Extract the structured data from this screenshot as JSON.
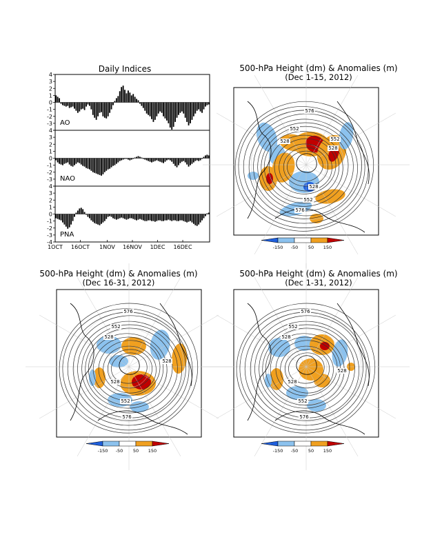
{
  "daily_indices": {
    "title": "Daily Indices",
    "x_ticks": [
      "1OCT",
      "16OCT",
      "1NOV",
      "16NOV",
      "1DEC",
      "16DEC"
    ],
    "y_ticks": [
      "4",
      "3",
      "2",
      "1",
      "0",
      "-1",
      "-2",
      "-3",
      "-4"
    ]
  },
  "maps": [
    {
      "title": "500-hPa Height (dm) & Anomalies (m)",
      "period": "(Dec 1-15, 2012)",
      "labels": [
        "576",
        "552",
        "528",
        "552",
        "528",
        "528",
        "552",
        "576"
      ]
    },
    {
      "title": "500-hPa Height (dm) & Anomalies (m)",
      "period": "(Dec 16-31, 2012)",
      "labels": [
        "576",
        "552",
        "528",
        "528",
        "528",
        "552",
        "576"
      ]
    },
    {
      "title": "500-hPa Height (dm) & Anomalies (m)",
      "period": "(Dec 1-31, 2012)",
      "labels": [
        "576",
        "552",
        "528",
        "528",
        "528",
        "552",
        "576"
      ]
    }
  ],
  "colorbar": {
    "labels": [
      "-150",
      "-50",
      "50",
      "150"
    ],
    "colors": [
      "#1f5fdc",
      "#8cc2ee",
      "#ffffff",
      "#f0a020",
      "#c00000"
    ]
  },
  "chart_data": [
    {
      "type": "bar",
      "title": "AO",
      "x": "daily, 1 Oct 2012 - 31 Dec 2012 (92 days)",
      "ylim": [
        -4,
        4
      ],
      "values": [
        1.0,
        0.8,
        0.6,
        -0.2,
        -0.4,
        -0.5,
        -0.6,
        -0.5,
        -0.8,
        -0.7,
        -0.6,
        -0.9,
        -1.2,
        -1.5,
        -1.3,
        -1.0,
        -0.9,
        -1.1,
        -0.6,
        -0.3,
        -0.5,
        -1.0,
        -1.8,
        -2.2,
        -2.5,
        -2.0,
        -1.5,
        -1.4,
        -2.0,
        -2.2,
        -2.3,
        -2.0,
        -1.5,
        -1.0,
        -0.4,
        0.2,
        0.6,
        0.9,
        1.6,
        2.2,
        2.4,
        1.8,
        1.3,
        1.7,
        1.4,
        1.0,
        1.2,
        0.8,
        0.5,
        0.3,
        -0.2,
        -0.5,
        -0.8,
        -1.2,
        -1.6,
        -1.8,
        -2.0,
        -2.4,
        -2.8,
        -2.5,
        -2.0,
        -1.6,
        -1.3,
        -1.5,
        -2.0,
        -2.3,
        -2.6,
        -3.0,
        -3.6,
        -3.9,
        -3.5,
        -2.8,
        -2.2,
        -1.8,
        -1.5,
        -1.3,
        -1.6,
        -2.2,
        -2.8,
        -3.3,
        -3.0,
        -2.5,
        -2.0,
        -1.6,
        -1.2,
        -1.0,
        -1.3,
        -1.5,
        -1.0,
        -0.6,
        -0.4,
        -0.3
      ]
    },
    {
      "type": "bar",
      "title": "NAO",
      "x": "daily, 1 Oct 2012 - 31 Dec 2012 (92 days)",
      "ylim": [
        -4,
        4
      ],
      "values": [
        -0.3,
        -0.6,
        -0.8,
        -0.9,
        -1.0,
        -0.8,
        -0.7,
        -0.6,
        -0.9,
        -1.1,
        -1.2,
        -1.0,
        -0.8,
        -0.6,
        -0.7,
        -0.9,
        -1.1,
        -1.2,
        -1.4,
        -1.5,
        -1.6,
        -1.8,
        -2.0,
        -2.1,
        -2.2,
        -2.3,
        -2.4,
        -2.5,
        -2.3,
        -2.0,
        -1.8,
        -1.6,
        -1.5,
        -1.3,
        -1.1,
        -1.0,
        -0.8,
        -0.6,
        -0.4,
        -0.3,
        -0.2,
        -0.1,
        -0.1,
        -0.2,
        -0.3,
        -0.2,
        -0.1,
        0.1,
        0.2,
        0.3,
        0.2,
        0.1,
        -0.1,
        -0.2,
        -0.3,
        -0.4,
        -0.5,
        -0.6,
        -0.5,
        -0.4,
        -0.3,
        -0.4,
        -0.5,
        -0.6,
        -0.7,
        -0.5,
        -0.3,
        -0.2,
        -0.3,
        -0.5,
        -0.8,
        -1.1,
        -1.3,
        -1.0,
        -0.7,
        -0.5,
        -0.4,
        -0.6,
        -0.9,
        -1.2,
        -1.0,
        -0.8,
        -0.6,
        -0.4,
        -0.3,
        -0.4,
        -0.3,
        -0.1,
        0.2,
        0.4,
        0.5,
        0.4
      ]
    },
    {
      "type": "bar",
      "title": "PNA",
      "x": "daily, 1 Oct 2012 - 31 Dec 2012 (92 days)",
      "ylim": [
        -4,
        4
      ],
      "values": [
        -0.6,
        -0.7,
        -0.8,
        -0.9,
        -1.2,
        -1.5,
        -1.8,
        -2.1,
        -1.9,
        -1.5,
        -1.0,
        -0.4,
        0.2,
        0.5,
        0.8,
        0.9,
        0.7,
        0.3,
        -0.1,
        -0.4,
        -0.6,
        -0.9,
        -1.1,
        -1.3,
        -1.4,
        -1.5,
        -1.6,
        -1.4,
        -1.2,
        -1.0,
        -0.7,
        -0.4,
        -0.3,
        -0.4,
        -0.6,
        -0.7,
        -0.8,
        -0.7,
        -0.6,
        -0.5,
        -0.6,
        -0.7,
        -0.8,
        -0.7,
        -0.6,
        -0.6,
        -0.7,
        -0.8,
        -0.9,
        -0.8,
        -0.7,
        -0.8,
        -0.9,
        -1.0,
        -1.0,
        -0.9,
        -0.9,
        -1.0,
        -1.0,
        -1.1,
        -1.0,
        -0.9,
        -0.9,
        -1.0,
        -1.0,
        -0.9,
        -0.9,
        -0.8,
        -0.9,
        -1.0,
        -0.9,
        -0.9,
        -1.0,
        -1.0,
        -0.9,
        -0.9,
        -1.0,
        -1.1,
        -1.2,
        -1.1,
        -1.0,
        -1.2,
        -1.4,
        -1.6,
        -1.7,
        -1.5,
        -1.2,
        -0.9,
        -0.6,
        -0.3,
        0.1,
        0.2
      ]
    }
  ]
}
